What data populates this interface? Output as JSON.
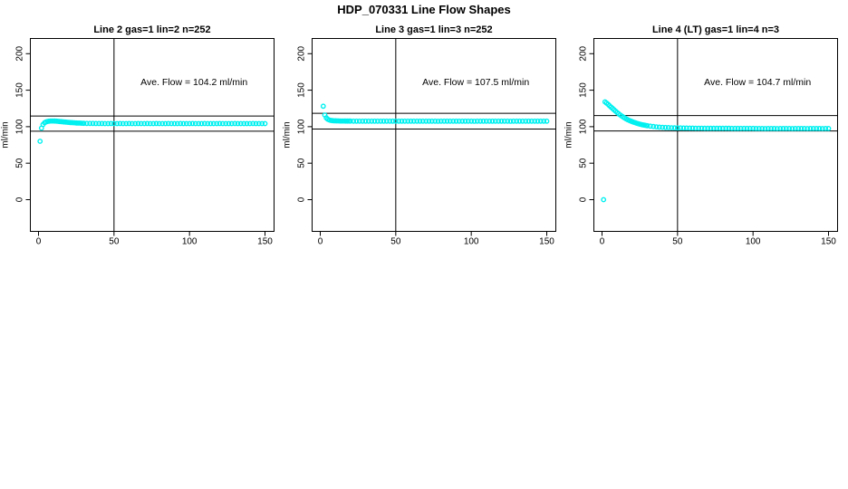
{
  "title": "HDP_070331  Line Flow Shapes",
  "colors": {
    "marker": "#00F0F0",
    "axis": "#000000",
    "background": "#FFFFFF"
  },
  "chart_data": [
    {
      "type": "scatter",
      "title": "Line 2 gas=1 lin=2 n=252",
      "annotation": "Ave. Flow =  104.2  ml/min",
      "ave_flow": 104.2,
      "ylabel": "ml/min",
      "xlabel": "",
      "x_ticks": [
        0,
        50,
        100,
        150
      ],
      "y_ticks": [
        0,
        50,
        100,
        150,
        200
      ],
      "xlim": [
        -6,
        156
      ],
      "ylim": [
        -44,
        221
      ],
      "grid": false,
      "legend": false,
      "vline_x": 50,
      "ref_line_upper": 114.6,
      "ref_line_lower": 93.8,
      "points": [
        [
          1,
          80
        ],
        [
          2,
          98
        ],
        [
          3,
          103
        ],
        [
          4,
          105.5
        ],
        [
          5,
          106.5
        ],
        [
          6,
          107.2
        ],
        [
          7,
          107.6
        ],
        [
          8,
          107.8
        ],
        [
          9,
          107.8
        ],
        [
          10,
          107.8
        ],
        [
          11,
          107.7
        ],
        [
          12,
          107.5
        ],
        [
          13,
          107.3
        ],
        [
          14,
          107.1
        ],
        [
          15,
          106.9
        ],
        [
          16,
          106.7
        ],
        [
          17,
          106.5
        ],
        [
          18,
          106.3
        ],
        [
          19,
          106.1
        ],
        [
          20,
          105.9
        ],
        [
          21,
          105.7
        ],
        [
          22,
          105.6
        ],
        [
          23,
          105.4
        ],
        [
          24,
          105.3
        ],
        [
          25,
          105.1
        ],
        [
          26,
          105.0
        ],
        [
          27,
          104.9
        ],
        [
          28,
          104.8
        ],
        [
          29,
          104.7
        ],
        [
          30,
          104.6
        ],
        [
          32,
          104.5
        ],
        [
          34,
          104.4
        ],
        [
          36,
          104.4
        ],
        [
          38,
          104.3
        ],
        [
          40,
          104.3
        ],
        [
          42,
          104.3
        ],
        [
          44,
          104.2
        ],
        [
          46,
          104.2
        ],
        [
          48,
          104.3
        ],
        [
          50,
          104.2
        ],
        [
          52,
          104.2
        ],
        [
          54,
          104.3
        ],
        [
          56,
          104.2
        ],
        [
          58,
          104.2
        ],
        [
          60,
          104.3
        ],
        [
          62,
          104.2
        ],
        [
          64,
          104.2
        ],
        [
          66,
          104.3
        ],
        [
          68,
          104.2
        ],
        [
          70,
          104.2
        ],
        [
          72,
          104.3
        ],
        [
          74,
          104.2
        ],
        [
          76,
          104.2
        ],
        [
          78,
          104.3
        ],
        [
          80,
          104.2
        ],
        [
          82,
          104.2
        ],
        [
          84,
          104.2
        ],
        [
          86,
          104.3
        ],
        [
          88,
          104.2
        ],
        [
          90,
          104.2
        ],
        [
          92,
          104.2
        ],
        [
          94,
          104.3
        ],
        [
          96,
          104.2
        ],
        [
          98,
          104.2
        ],
        [
          100,
          104.2
        ],
        [
          102,
          104.3
        ],
        [
          104,
          104.2
        ],
        [
          106,
          104.2
        ],
        [
          108,
          104.2
        ],
        [
          110,
          104.3
        ],
        [
          112,
          104.2
        ],
        [
          114,
          104.2
        ],
        [
          116,
          104.2
        ],
        [
          118,
          104.2
        ],
        [
          120,
          104.3
        ],
        [
          122,
          104.2
        ],
        [
          124,
          104.2
        ],
        [
          126,
          104.2
        ],
        [
          128,
          104.2
        ],
        [
          130,
          104.3
        ],
        [
          132,
          104.2
        ],
        [
          134,
          104.2
        ],
        [
          136,
          104.2
        ],
        [
          138,
          104.2
        ],
        [
          140,
          104.2
        ],
        [
          142,
          104.3
        ],
        [
          144,
          104.2
        ],
        [
          146,
          104.2
        ],
        [
          148,
          104.2
        ],
        [
          150,
          104.2
        ]
      ]
    },
    {
      "type": "scatter",
      "title": "Line 3 gas=1 lin=3 n=252",
      "annotation": "Ave. Flow =  107.5  ml/min",
      "ave_flow": 107.5,
      "ylabel": "ml/min",
      "xlabel": "",
      "x_ticks": [
        0,
        50,
        100,
        150
      ],
      "y_ticks": [
        0,
        50,
        100,
        150,
        200
      ],
      "xlim": [
        -6,
        156
      ],
      "ylim": [
        -44,
        221
      ],
      "grid": false,
      "legend": false,
      "vline_x": 50,
      "ref_line_upper": 118.3,
      "ref_line_lower": 96.8,
      "points": [
        [
          2,
          128
        ],
        [
          3,
          116
        ],
        [
          4,
          112
        ],
        [
          5,
          110.2
        ],
        [
          6,
          109.2
        ],
        [
          7,
          108.6
        ],
        [
          8,
          108.3
        ],
        [
          9,
          108.1
        ],
        [
          10,
          108
        ],
        [
          11,
          107.9
        ],
        [
          12,
          107.9
        ],
        [
          13,
          107.8
        ],
        [
          14,
          107.8
        ],
        [
          15,
          107.8
        ],
        [
          16,
          107.8
        ],
        [
          17,
          107.7
        ],
        [
          18,
          107.7
        ],
        [
          19,
          107.7
        ],
        [
          20,
          107.7
        ],
        [
          22,
          107.6
        ],
        [
          24,
          107.6
        ],
        [
          26,
          107.6
        ],
        [
          28,
          107.6
        ],
        [
          30,
          107.5
        ],
        [
          32,
          107.5
        ],
        [
          34,
          107.6
        ],
        [
          36,
          107.5
        ],
        [
          38,
          107.5
        ],
        [
          40,
          107.5
        ],
        [
          42,
          107.6
        ],
        [
          44,
          107.5
        ],
        [
          46,
          107.5
        ],
        [
          48,
          107.5
        ],
        [
          50,
          107.5
        ],
        [
          52,
          107.5
        ],
        [
          54,
          107.6
        ],
        [
          56,
          107.5
        ],
        [
          58,
          107.5
        ],
        [
          60,
          107.5
        ],
        [
          62,
          107.5
        ],
        [
          64,
          107.5
        ],
        [
          66,
          107.6
        ],
        [
          68,
          107.5
        ],
        [
          70,
          107.5
        ],
        [
          72,
          107.5
        ],
        [
          74,
          107.5
        ],
        [
          76,
          107.5
        ],
        [
          78,
          107.4
        ],
        [
          80,
          107.5
        ],
        [
          82,
          107.5
        ],
        [
          84,
          107.5
        ],
        [
          86,
          107.5
        ],
        [
          88,
          107.6
        ],
        [
          90,
          107.5
        ],
        [
          92,
          107.5
        ],
        [
          94,
          107.5
        ],
        [
          96,
          107.5
        ],
        [
          98,
          107.5
        ],
        [
          100,
          107.5
        ],
        [
          102,
          107.4
        ],
        [
          104,
          107.5
        ],
        [
          106,
          107.5
        ],
        [
          108,
          107.5
        ],
        [
          110,
          107.5
        ],
        [
          112,
          107.5
        ],
        [
          114,
          107.6
        ],
        [
          116,
          107.5
        ],
        [
          118,
          107.5
        ],
        [
          120,
          107.5
        ],
        [
          122,
          107.5
        ],
        [
          124,
          107.5
        ],
        [
          126,
          107.4
        ],
        [
          128,
          107.5
        ],
        [
          130,
          107.5
        ],
        [
          132,
          107.5
        ],
        [
          134,
          107.5
        ],
        [
          136,
          107.5
        ],
        [
          138,
          107.5
        ],
        [
          140,
          107.5
        ],
        [
          142,
          107.6
        ],
        [
          144,
          107.5
        ],
        [
          146,
          107.5
        ],
        [
          148,
          107.5
        ],
        [
          150,
          107.5
        ]
      ]
    },
    {
      "type": "scatter",
      "title": "Line 4 (LT) gas=1 lin=4 n=3",
      "annotation": "Ave. Flow =  104.7  ml/min",
      "ave_flow": 104.7,
      "ylabel": "ml/min",
      "xlabel": "",
      "x_ticks": [
        0,
        50,
        100,
        150
      ],
      "y_ticks": [
        0,
        50,
        100,
        150,
        200
      ],
      "xlim": [
        -6,
        156
      ],
      "ylim": [
        -44,
        221
      ],
      "grid": false,
      "legend": false,
      "vline_x": 50,
      "ref_line_upper": 115.2,
      "ref_line_lower": 94.2,
      "points": [
        [
          1,
          0
        ],
        [
          2,
          134
        ],
        [
          3,
          132.4
        ],
        [
          4,
          130.6
        ],
        [
          5,
          128.7
        ],
        [
          6,
          126.8
        ],
        [
          7,
          124.9
        ],
        [
          8,
          123
        ],
        [
          9,
          121.2
        ],
        [
          10,
          119.4
        ],
        [
          11,
          117.7
        ],
        [
          12,
          116.1
        ],
        [
          13,
          114.6
        ],
        [
          14,
          113.2
        ],
        [
          15,
          111.9
        ],
        [
          16,
          110.7
        ],
        [
          17,
          109.6
        ],
        [
          18,
          108.6
        ],
        [
          19,
          107.7
        ],
        [
          20,
          106.9
        ],
        [
          21,
          106.1
        ],
        [
          22,
          105.4
        ],
        [
          23,
          104.7
        ],
        [
          24,
          104.1
        ],
        [
          25,
          103.5
        ],
        [
          26,
          103
        ],
        [
          27,
          102.5
        ],
        [
          28,
          102.1
        ],
        [
          29,
          101.7
        ],
        [
          30,
          101.3
        ],
        [
          32,
          100.7
        ],
        [
          34,
          100.2
        ],
        [
          36,
          99.8
        ],
        [
          38,
          99.4
        ],
        [
          40,
          99.1
        ],
        [
          42,
          98.9
        ],
        [
          44,
          98.7
        ],
        [
          46,
          98.5
        ],
        [
          48,
          98.4
        ],
        [
          50,
          98.3
        ],
        [
          52,
          98.2
        ],
        [
          54,
          98.1
        ],
        [
          56,
          98.1
        ],
        [
          58,
          98
        ],
        [
          60,
          98
        ],
        [
          62,
          97.9
        ],
        [
          64,
          97.9
        ],
        [
          66,
          97.9
        ],
        [
          68,
          97.8
        ],
        [
          70,
          97.8
        ],
        [
          72,
          97.8
        ],
        [
          74,
          97.8
        ],
        [
          76,
          97.7
        ],
        [
          78,
          97.7
        ],
        [
          80,
          97.7
        ],
        [
          82,
          97.7
        ],
        [
          84,
          97.7
        ],
        [
          86,
          97.6
        ],
        [
          88,
          97.6
        ],
        [
          90,
          97.6
        ],
        [
          92,
          97.6
        ],
        [
          94,
          97.6
        ],
        [
          96,
          97.6
        ],
        [
          98,
          97.6
        ],
        [
          100,
          97.6
        ],
        [
          102,
          97.5
        ],
        [
          104,
          97.5
        ],
        [
          106,
          97.5
        ],
        [
          108,
          97.4
        ],
        [
          110,
          97.5
        ],
        [
          112,
          97.5
        ],
        [
          114,
          97.5
        ],
        [
          116,
          97.4
        ],
        [
          118,
          97.5
        ],
        [
          120,
          97.5
        ],
        [
          122,
          97.5
        ],
        [
          124,
          97.5
        ],
        [
          126,
          97.4
        ],
        [
          128,
          97.5
        ],
        [
          130,
          97.5
        ],
        [
          132,
          97.5
        ],
        [
          134,
          97.5
        ],
        [
          136,
          97.4
        ],
        [
          138,
          97.5
        ],
        [
          140,
          97.5
        ],
        [
          142,
          97.5
        ],
        [
          144,
          97.5
        ],
        [
          146,
          97.4
        ],
        [
          148,
          97.5
        ],
        [
          150,
          97.5
        ]
      ]
    }
  ]
}
